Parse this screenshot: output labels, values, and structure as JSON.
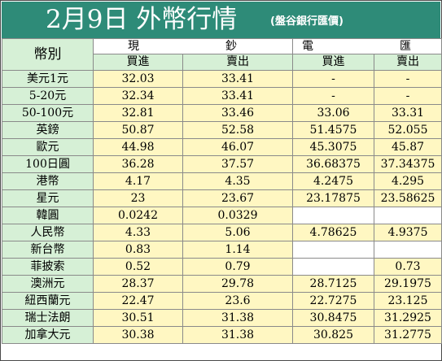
{
  "title": "2月9日 外幣行情",
  "source": "(盤谷銀行匯價)",
  "headers": {
    "currency": "幣別",
    "cash": "現　　鈔",
    "transfer": "電　　匯",
    "buy": "買進",
    "sell": "賣出"
  },
  "rows": [
    {
      "currency": "美元1元",
      "cash_buy": "32.03",
      "cash_sell": "33.41",
      "tt_buy": "-",
      "tt_sell": "-"
    },
    {
      "currency": "5-20元",
      "cash_buy": "32.34",
      "cash_sell": "33.41",
      "tt_buy": "-",
      "tt_sell": "-"
    },
    {
      "currency": "50-100元",
      "cash_buy": "32.81",
      "cash_sell": "33.46",
      "tt_buy": "33.06",
      "tt_sell": "33.31"
    },
    {
      "currency": "英鎊",
      "cash_buy": "50.87",
      "cash_sell": "52.58",
      "tt_buy": "51.4575",
      "tt_sell": "52.055"
    },
    {
      "currency": "歐元",
      "cash_buy": "44.98",
      "cash_sell": "46.07",
      "tt_buy": "45.3075",
      "tt_sell": "45.87"
    },
    {
      "currency": "100日圓",
      "cash_buy": "36.28",
      "cash_sell": "37.57",
      "tt_buy": "36.68375",
      "tt_sell": "37.34375"
    },
    {
      "currency": "港幣",
      "cash_buy": "4.17",
      "cash_sell": "4.35",
      "tt_buy": "4.2475",
      "tt_sell": "4.295"
    },
    {
      "currency": "星元",
      "cash_buy": "23",
      "cash_sell": "23.67",
      "tt_buy": "23.17875",
      "tt_sell": "23.58625"
    },
    {
      "currency": "韓圓",
      "cash_buy": "0.0242",
      "cash_sell": "0.0329",
      "tt_buy": "",
      "tt_sell": ""
    },
    {
      "currency": "人民幣",
      "cash_buy": "4.33",
      "cash_sell": "5.06",
      "tt_buy": "4.78625",
      "tt_sell": "4.9375"
    },
    {
      "currency": "新台幣",
      "cash_buy": "0.83",
      "cash_sell": "1.14",
      "tt_buy": "",
      "tt_sell": ""
    },
    {
      "currency": "菲披索",
      "cash_buy": "0.52",
      "cash_sell": "0.79",
      "tt_buy": "",
      "tt_sell": "0.73"
    },
    {
      "currency": "澳洲元",
      "cash_buy": "28.37",
      "cash_sell": "29.78",
      "tt_buy": "28.7125",
      "tt_sell": "29.1975"
    },
    {
      "currency": "紐西蘭元",
      "cash_buy": "22.47",
      "cash_sell": "23.6",
      "tt_buy": "22.7275",
      "tt_sell": "23.125"
    },
    {
      "currency": "瑞士法朗",
      "cash_buy": "30.51",
      "cash_sell": "31.38",
      "tt_buy": "30.8475",
      "tt_sell": "31.2925"
    },
    {
      "currency": "加拿大元",
      "cash_buy": "30.38",
      "cash_sell": "31.38",
      "tt_buy": "30.825",
      "tt_sell": "31.2775"
    }
  ],
  "colors": {
    "title_bg": "#2e8b78",
    "header_bg": "#d6f0d6",
    "value_bg": "#fff7c2",
    "empty_bg": "#ffffff"
  }
}
